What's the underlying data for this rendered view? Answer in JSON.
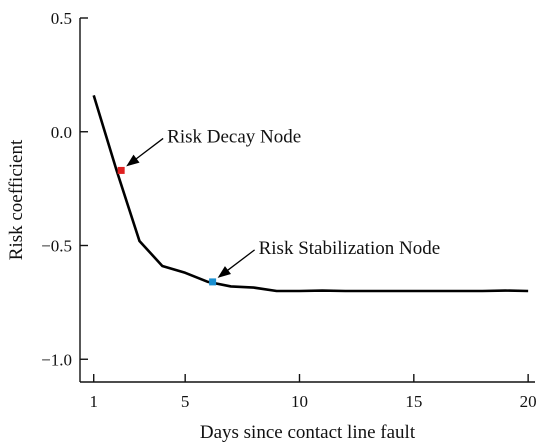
{
  "chart_data": {
    "type": "line",
    "title": "",
    "xlabel": "Days since contact line fault",
    "ylabel": "Risk coefficient",
    "xlim": [
      0.4,
      20.3
    ],
    "ylim": [
      -1.1,
      0.5
    ],
    "xticks": [
      1,
      5,
      10,
      15,
      20
    ],
    "yticks": [
      0.5,
      0.0,
      -0.5,
      -1.0
    ],
    "xtick_labels": [
      "1",
      "5",
      "10",
      "15",
      "20"
    ],
    "ytick_labels": [
      "0.5",
      "0.0",
      "−0.5",
      "−1.0"
    ],
    "grid": false,
    "series": [
      {
        "x": [
          1,
          2,
          3,
          4,
          5,
          6,
          7,
          8,
          9,
          10,
          11,
          12,
          13,
          14,
          15,
          16,
          17,
          18,
          19,
          20
        ],
        "y": [
          0.16,
          -0.17,
          -0.48,
          -0.59,
          -0.62,
          -0.66,
          -0.68,
          -0.685,
          -0.7,
          -0.7,
          -0.698,
          -0.7,
          -0.7,
          -0.7,
          -0.7,
          -0.7,
          -0.7,
          -0.7,
          -0.698,
          -0.7
        ],
        "color": "#000000"
      }
    ],
    "annotations": [
      {
        "text": "Risk Decay Node",
        "x": 2.2,
        "y": -0.17,
        "marker_color": "#e02020"
      },
      {
        "text": "Risk Stabilization Node",
        "x": 6.2,
        "y": -0.66,
        "marker_color": "#1a8fd0"
      }
    ]
  }
}
